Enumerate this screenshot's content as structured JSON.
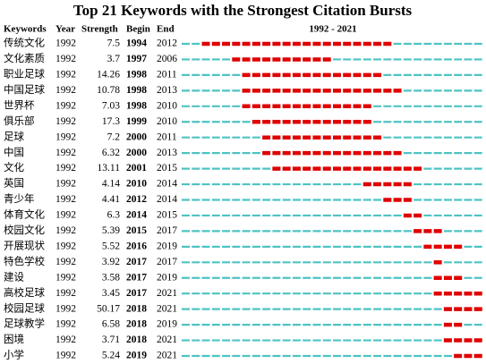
{
  "title": "Top 21 Keywords with the Strongest Citation Bursts",
  "table": {
    "header": [
      "Keywords",
      "Year",
      "Strength",
      "Begin",
      "End",
      "1992 - 2021"
    ],
    "rows": [
      [
        "传统文化",
        1992,
        7.5,
        1994,
        2012
      ],
      [
        "文化素质",
        1992,
        3.7,
        1997,
        2006
      ],
      [
        "职业足球",
        1992,
        14.26,
        1998,
        2011
      ],
      [
        "中国足球",
        1992,
        10.78,
        1998,
        2013
      ],
      [
        "世界杯",
        1992,
        7.03,
        1998,
        2010
      ],
      [
        "俱乐部",
        1992,
        17.3,
        1999,
        2010
      ],
      [
        "足球",
        1992,
        7.2,
        2000,
        2011
      ],
      [
        "中国",
        1992,
        6.32,
        2000,
        2013
      ],
      [
        "文化",
        1992,
        13.11,
        2001,
        2015
      ],
      [
        "英国",
        1992,
        4.14,
        2010,
        2014
      ],
      [
        "青少年",
        1992,
        4.41,
        2012,
        2014
      ],
      [
        "体育文化",
        1992,
        6.3,
        2014,
        2015
      ],
      [
        "校园文化",
        1992,
        5.39,
        2015,
        2017
      ],
      [
        "开展现状",
        1992,
        5.52,
        2016,
        2019
      ],
      [
        "特色学校",
        1992,
        3.92,
        2017,
        2017
      ],
      [
        "建设",
        1992,
        3.58,
        2017,
        2019
      ],
      [
        "高校足球",
        1992,
        3.45,
        2017,
        2021
      ],
      [
        "校园足球",
        1992,
        50.17,
        2018,
        2021
      ],
      [
        "足球教学",
        1992,
        6.58,
        2018,
        2019
      ],
      [
        "困境",
        1992,
        3.71,
        2018,
        2021
      ],
      [
        "小学",
        1992,
        5.24,
        2019,
        2021
      ]
    ]
  }
}
